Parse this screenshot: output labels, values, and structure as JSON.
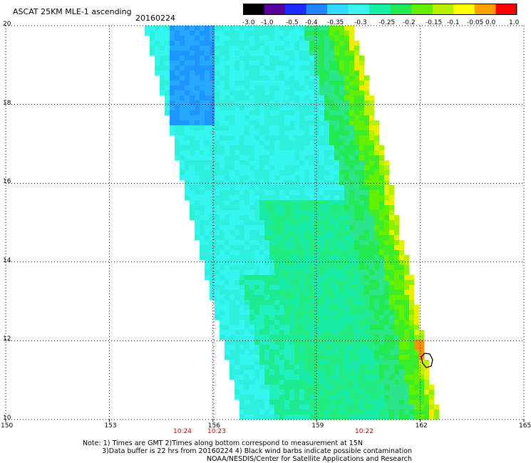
{
  "header": {
    "title": "ASCAT 25KM MLE-1 ascending",
    "date": "20160224"
  },
  "colorbar": {
    "labels": [
      "-3.0",
      "-1.0",
      "-0.5",
      "-0.4",
      "-0.35",
      "-0.3",
      "-0.25",
      "-0.2",
      "-0.15",
      "-0.1",
      "-0.05",
      "0.0",
      "1.0"
    ],
    "colors": [
      "#000000",
      "#5a009a",
      "#1a2cff",
      "#1f86ff",
      "#33d8ff",
      "#38f5ee",
      "#16efa8",
      "#23ea52",
      "#62f000",
      "#b6f000",
      "#ffff00",
      "#ffa000",
      "#ff0000"
    ]
  },
  "map": {
    "lon_range": [
      150,
      165
    ],
    "lat_range": [
      10,
      20
    ],
    "lon_ticks": [
      "150",
      "153",
      "156",
      "159",
      "162",
      "165"
    ],
    "lat_ticks": [
      "20",
      "18",
      "16",
      "14",
      "12",
      "10"
    ],
    "time_labels": [
      "10:24",
      "10:23",
      "10:22"
    ],
    "grid": "dotted",
    "colors": {
      "background": "#ffffff",
      "grid": "#000000",
      "time_label": "#c00000"
    }
  },
  "notes": {
    "line1": "Note: 1) Times are GMT 2)Times along bottom correspond to measurement at 15N",
    "line2": "3)Data buffer is 22 hrs from 20160224 4) Black wind barbs indicate possible contamination",
    "line3": "NOAA/NESDIS/Center for Satellite Applications and Research"
  }
}
